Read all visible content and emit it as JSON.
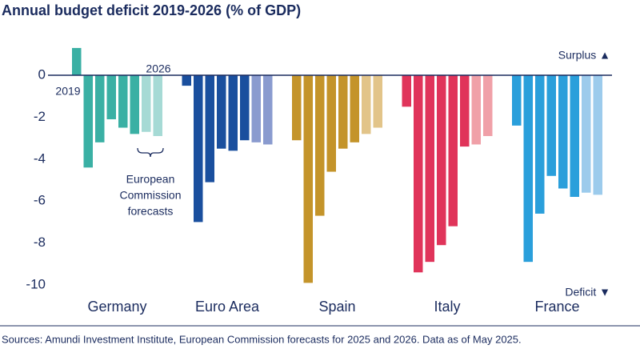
{
  "chart_data": {
    "type": "bar",
    "title": "Annual budget deficit 2019-2026 (% of GDP)",
    "source": "Sources: Amundi Investment Institute, European Commission forecasts for 2025 and 2026. Data as of May 2025.",
    "annotations": {
      "first_year": "2019",
      "last_year": "2026",
      "forecast_note": [
        "European",
        "Commission",
        "forecasts"
      ],
      "surplus": "Surplus ▲",
      "deficit": "Deficit ▼"
    },
    "ylim": [
      -10.5,
      1.5
    ],
    "yticks": [
      0,
      -2,
      -4,
      -6,
      -8,
      -10
    ],
    "series": [
      {
        "name": "Germany",
        "colors": [
          "#3ab0a4",
          "#3ab0a4",
          "#3ab0a4",
          "#3ab0a4",
          "#3ab0a4",
          "#3ab0a4",
          "#a6dad5",
          "#a6dad5"
        ],
        "values": [
          1.3,
          -4.4,
          -3.2,
          -2.1,
          -2.5,
          -2.8,
          -2.7,
          -2.9
        ]
      },
      {
        "name": "Euro Area",
        "colors": [
          "#1a4f9e",
          "#1a4f9e",
          "#1a4f9e",
          "#1a4f9e",
          "#1a4f9e",
          "#1a4f9e",
          "#8a9bcf",
          "#8a9bcf"
        ],
        "values": [
          -0.5,
          -7.0,
          -5.1,
          -3.5,
          -3.6,
          -3.1,
          -3.2,
          -3.3
        ]
      },
      {
        "name": "Spain",
        "colors": [
          "#c4942a",
          "#c4942a",
          "#c4942a",
          "#c4942a",
          "#c4942a",
          "#c4942a",
          "#e2c489",
          "#e2c489"
        ],
        "values": [
          -3.1,
          -9.9,
          -6.7,
          -4.6,
          -3.5,
          -3.2,
          -2.8,
          -2.5
        ]
      },
      {
        "name": "Italy",
        "colors": [
          "#e0345a",
          "#e0345a",
          "#e0345a",
          "#e0345a",
          "#e0345a",
          "#e0345a",
          "#f0a0a8",
          "#f0a0a8"
        ],
        "values": [
          -1.5,
          -9.4,
          -8.9,
          -8.1,
          -7.2,
          -3.4,
          -3.3,
          -2.9
        ]
      },
      {
        "name": "France",
        "colors": [
          "#2a9fdb",
          "#2a9fdb",
          "#2a9fdb",
          "#2a9fdb",
          "#2a9fdb",
          "#2a9fdb",
          "#9ccbec",
          "#9ccbec"
        ],
        "values": [
          -2.4,
          -8.9,
          -6.6,
          -4.8,
          -5.4,
          -5.8,
          -5.6,
          -5.7
        ]
      }
    ]
  }
}
